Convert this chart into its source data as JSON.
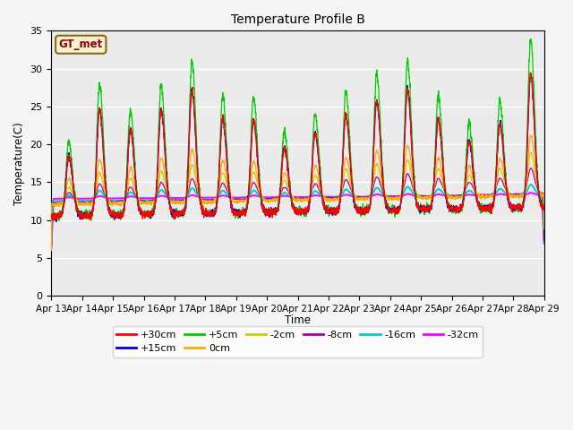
{
  "title": "Temperature Profile B",
  "xlabel": "Time",
  "ylabel": "Temperature(C)",
  "ylim": [
    0,
    35
  ],
  "annotation_text": "GT_met",
  "legend_entries": [
    "+30cm",
    "+15cm",
    "+5cm",
    "0cm",
    "-2cm",
    "-8cm",
    "-16cm",
    "-32cm"
  ],
  "line_colors": [
    "#ff0000",
    "#0000dd",
    "#00cc00",
    "#ffaa00",
    "#cccc00",
    "#aa00aa",
    "#00cccc",
    "#ff00ff"
  ],
  "background_color": "#ebebeb",
  "grid_color": "#ffffff",
  "n_days": 16,
  "start_day": 13,
  "figsize": [
    6.4,
    4.8
  ],
  "dpi": 100
}
